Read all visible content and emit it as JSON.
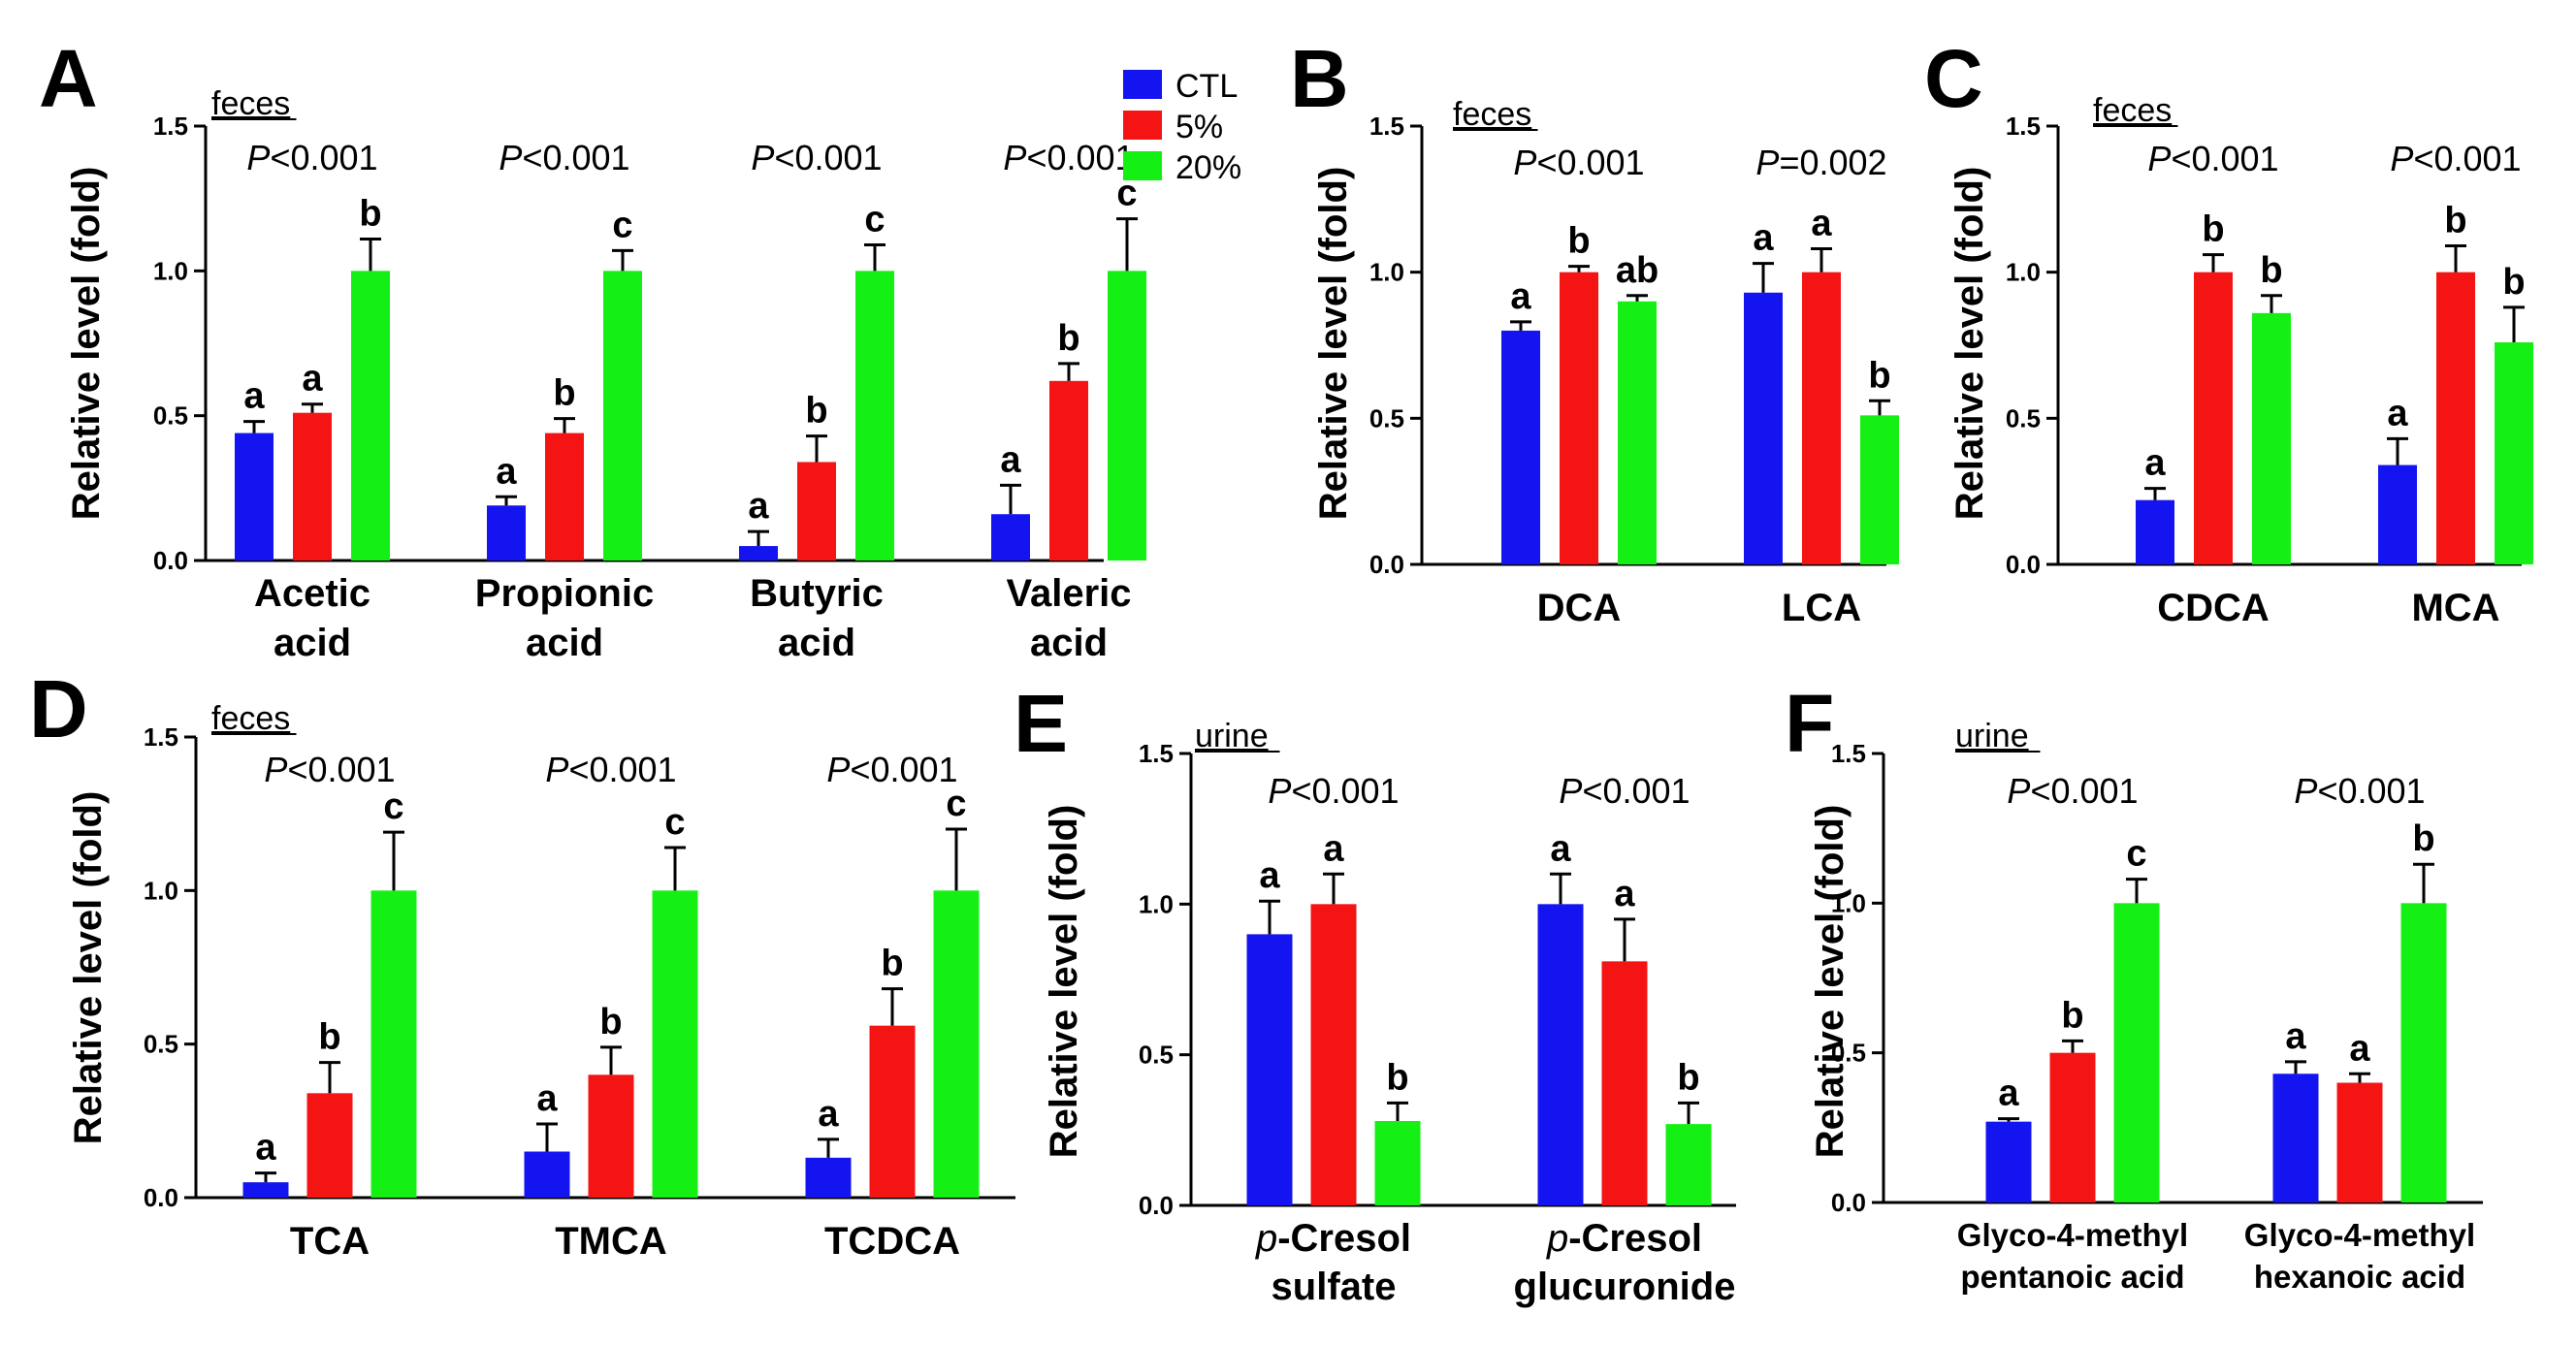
{
  "colors": {
    "CTL": "#1414f0",
    "5%": "#f51414",
    "20%": "#14f014",
    "axis": "#000000"
  },
  "legend": [
    {
      "name": "CTL",
      "color": "#1414f0"
    },
    {
      "name": "5%",
      "color": "#f51414"
    },
    {
      "name": "20%",
      "color": "#14f014"
    }
  ],
  "chart_data": [
    {
      "panel": "A",
      "type": "bar",
      "sample": "feces",
      "ylabel": "Relative level (fold)",
      "ylim": [
        0,
        1.5
      ],
      "yticks": [
        "0.0",
        "0.5",
        "1.0",
        "1.5"
      ],
      "series_names": [
        "CTL",
        "5%",
        "20%"
      ],
      "groups": [
        {
          "label": [
            "Acetic",
            "acid"
          ],
          "p": [
            "P",
            "<0.001"
          ],
          "values": [
            0.44,
            0.51,
            1.0
          ],
          "errors": [
            0.04,
            0.03,
            0.11
          ],
          "letters": [
            "a",
            "a",
            "b"
          ]
        },
        {
          "label": [
            "Propionic",
            "acid"
          ],
          "p": [
            "P",
            "<0.001"
          ],
          "values": [
            0.19,
            0.44,
            1.0
          ],
          "errors": [
            0.03,
            0.05,
            0.07
          ],
          "letters": [
            "a",
            "b",
            "c"
          ]
        },
        {
          "label": [
            "Butyric",
            "acid"
          ],
          "p": [
            "P",
            "<0.001"
          ],
          "values": [
            0.05,
            0.34,
            1.0
          ],
          "errors": [
            0.05,
            0.09,
            0.09
          ],
          "letters": [
            "a",
            "b",
            "c"
          ]
        },
        {
          "label": [
            "Valeric",
            "acid"
          ],
          "p": [
            "P",
            "<0.001"
          ],
          "values": [
            0.16,
            0.62,
            1.0
          ],
          "errors": [
            0.1,
            0.06,
            0.18
          ],
          "letters": [
            "a",
            "b",
            "c"
          ]
        }
      ]
    },
    {
      "panel": "B",
      "type": "bar",
      "sample": "feces",
      "ylabel": "Relative level (fold)",
      "ylim": [
        0,
        1.5
      ],
      "yticks": [
        "0.0",
        "0.5",
        "1.0",
        "1.5"
      ],
      "series_names": [
        "CTL",
        "5%",
        "20%"
      ],
      "groups": [
        {
          "label": [
            "DCA"
          ],
          "p": [
            "P",
            "<0.001"
          ],
          "values": [
            0.8,
            1.0,
            0.9
          ],
          "errors": [
            0.03,
            0.02,
            0.02
          ],
          "letters": [
            "a",
            "b",
            "ab"
          ]
        },
        {
          "label": [
            "LCA"
          ],
          "p": [
            "P",
            "=0.002"
          ],
          "values": [
            0.93,
            1.0,
            0.51
          ],
          "errors": [
            0.1,
            0.08,
            0.05
          ],
          "letters": [
            "a",
            "a",
            "b"
          ]
        }
      ]
    },
    {
      "panel": "C",
      "type": "bar",
      "sample": "feces",
      "ylabel": "Relative level (fold)",
      "ylim": [
        0,
        1.5
      ],
      "yticks": [
        "0.0",
        "0.5",
        "1.0",
        "1.5"
      ],
      "series_names": [
        "CTL",
        "5%",
        "20%"
      ],
      "groups": [
        {
          "label": [
            "CDCA"
          ],
          "p": [
            "P",
            "<0.001"
          ],
          "values": [
            0.22,
            1.0,
            0.86
          ],
          "errors": [
            0.04,
            0.06,
            0.06
          ],
          "letters": [
            "a",
            "b",
            "b"
          ]
        },
        {
          "label": [
            "MCA"
          ],
          "p": [
            "P",
            "<0.001"
          ],
          "values": [
            0.34,
            1.0,
            0.76
          ],
          "errors": [
            0.09,
            0.09,
            0.12
          ],
          "letters": [
            "a",
            "b",
            "b"
          ]
        }
      ]
    },
    {
      "panel": "D",
      "type": "bar",
      "sample": "feces",
      "ylabel": "Relative level (fold)",
      "ylim": [
        0,
        1.5
      ],
      "yticks": [
        "0.0",
        "0.5",
        "1.0",
        "1.5"
      ],
      "series_names": [
        "CTL",
        "5%",
        "20%"
      ],
      "groups": [
        {
          "label": [
            "TCA"
          ],
          "p": [
            "P",
            "<0.001"
          ],
          "values": [
            0.05,
            0.34,
            1.0
          ],
          "errors": [
            0.03,
            0.1,
            0.19
          ],
          "letters": [
            "a",
            "b",
            "c"
          ]
        },
        {
          "label": [
            "TMCA"
          ],
          "p": [
            "P",
            "<0.001"
          ],
          "values": [
            0.15,
            0.4,
            1.0
          ],
          "errors": [
            0.09,
            0.09,
            0.14
          ],
          "letters": [
            "a",
            "b",
            "c"
          ]
        },
        {
          "label": [
            "TCDCA"
          ],
          "p": [
            "P",
            "<0.001"
          ],
          "values": [
            0.13,
            0.56,
            1.0
          ],
          "errors": [
            0.06,
            0.12,
            0.2
          ],
          "letters": [
            "a",
            "b",
            "c"
          ]
        }
      ]
    },
    {
      "panel": "E",
      "type": "bar",
      "sample": "urine",
      "ylabel": "Relative level (fold)",
      "ylim": [
        0,
        1.5
      ],
      "yticks": [
        "0.0",
        "0.5",
        "1.0",
        "1.5"
      ],
      "series_names": [
        "CTL",
        "5%",
        "20%"
      ],
      "groups": [
        {
          "label": [
            "p",
            "-Cresol",
            "sulfate"
          ],
          "p": [
            "P",
            "<0.001"
          ],
          "values": [
            0.9,
            1.0,
            0.28
          ],
          "errors": [
            0.11,
            0.1,
            0.06
          ],
          "letters": [
            "a",
            "a",
            "b"
          ]
        },
        {
          "label": [
            "p",
            "-Cresol",
            "glucuronide"
          ],
          "p": [
            "P",
            "<0.001"
          ],
          "values": [
            1.0,
            0.81,
            0.27
          ],
          "errors": [
            0.1,
            0.14,
            0.07
          ],
          "letters": [
            "a",
            "a",
            "b"
          ]
        }
      ]
    },
    {
      "panel": "F",
      "type": "bar",
      "sample": "urine",
      "ylabel": "Relative level (fold)",
      "ylim": [
        0,
        1.5
      ],
      "yticks": [
        "0.0",
        "0.5",
        "1.0",
        "1.5"
      ],
      "series_names": [
        "CTL",
        "5%",
        "20%"
      ],
      "groups": [
        {
          "label": [
            "Glyco-4-methyl",
            "pentanoic acid"
          ],
          "p": [
            "P",
            "<0.001"
          ],
          "values": [
            0.27,
            0.5,
            1.0
          ],
          "errors": [
            0.01,
            0.04,
            0.08
          ],
          "letters": [
            "a",
            "b",
            "c"
          ]
        },
        {
          "label": [
            "Glyco-4-methyl",
            "hexanoic acid"
          ],
          "p": [
            "P",
            "<0.001"
          ],
          "values": [
            0.43,
            0.4,
            1.0
          ],
          "errors": [
            0.04,
            0.03,
            0.13
          ],
          "letters": [
            "a",
            "a",
            "b"
          ]
        }
      ]
    }
  ]
}
